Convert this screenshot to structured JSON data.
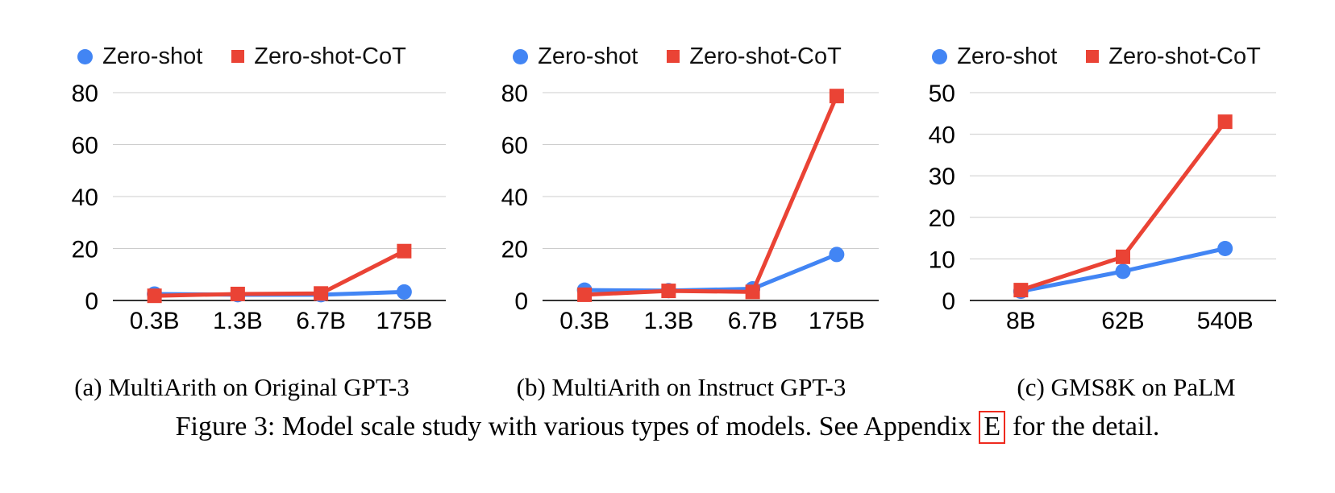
{
  "figure": {
    "caption_before": "Figure 3: Model scale study with various types of models. See Appendix",
    "appendix_link": "E",
    "caption_after": "for the detail."
  },
  "colors": {
    "zero_shot": "#4285f4",
    "zero_shot_cot": "#ea4335",
    "gridline": "#cccccc",
    "axis": "#333333",
    "link_box": "#ee2a1e",
    "text": "#000000"
  },
  "legend": {
    "items": [
      {
        "label": "Zero-shot",
        "marker": "circle"
      },
      {
        "label": "Zero-shot-CoT",
        "marker": "square"
      }
    ]
  },
  "chart_data": [
    {
      "type": "line",
      "title": "(a) MultiArith on Original GPT-3",
      "categories": [
        "0.3B",
        "1.3B",
        "6.7B",
        "175B"
      ],
      "series": [
        {
          "name": "Zero-shot",
          "marker": "circle",
          "color": "#4285f4",
          "values": [
            2.5,
            2.2,
            2.2,
            3.3
          ]
        },
        {
          "name": "Zero-shot-CoT",
          "marker": "square",
          "color": "#ea4335",
          "values": [
            1.8,
            2.5,
            2.7,
            19.0
          ]
        }
      ],
      "ylim": [
        0,
        80
      ],
      "yticks": [
        0,
        20,
        40,
        60,
        80
      ],
      "grid": true,
      "legend_position": "top"
    },
    {
      "type": "line",
      "title": "(b) MultiArith on Instruct GPT-3",
      "categories": [
        "0.3B",
        "1.3B",
        "6.7B",
        "175B"
      ],
      "series": [
        {
          "name": "Zero-shot",
          "marker": "circle",
          "color": "#4285f4",
          "values": [
            4.0,
            3.8,
            4.5,
            17.7
          ]
        },
        {
          "name": "Zero-shot-CoT",
          "marker": "square",
          "color": "#ea4335",
          "values": [
            2.2,
            3.7,
            3.3,
            78.7
          ]
        }
      ],
      "ylim": [
        0,
        80
      ],
      "yticks": [
        0,
        20,
        40,
        60,
        80
      ],
      "grid": true,
      "legend_position": "top"
    },
    {
      "type": "line",
      "title": "(c) GMS8K on PaLM",
      "categories": [
        "8B",
        "62B",
        "540B"
      ],
      "series": [
        {
          "name": "Zero-shot",
          "marker": "circle",
          "color": "#4285f4",
          "values": [
            2.2,
            7.0,
            12.5
          ]
        },
        {
          "name": "Zero-shot-CoT",
          "marker": "square",
          "color": "#ea4335",
          "values": [
            2.5,
            10.5,
            43.0
          ]
        }
      ],
      "ylim": [
        0,
        50
      ],
      "yticks": [
        0,
        10,
        20,
        30,
        40,
        50
      ],
      "grid": true,
      "legend_position": "top"
    }
  ]
}
